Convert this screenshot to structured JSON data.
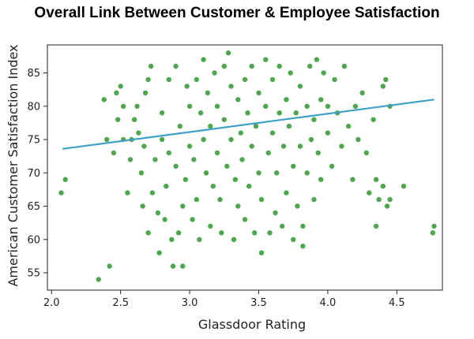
{
  "chart_data": {
    "type": "scatter",
    "title": "Overall Link Between Customer & Employee Satisfaction",
    "xlabel": "Glassdoor Rating",
    "ylabel": "American Customer Satisfaction Index",
    "xlim": [
      1.97,
      4.83
    ],
    "ylim": [
      52.4,
      89.2
    ],
    "xticks": [
      "2.0",
      "2.5",
      "3.0",
      "3.5",
      "4.0",
      "4.5"
    ],
    "yticks": [
      "55",
      "60",
      "65",
      "70",
      "75",
      "80",
      "85"
    ],
    "grid": false,
    "legend": "none",
    "colors": {
      "points": "#4ea64e",
      "trend": "#3fa0c8"
    },
    "trendline": {
      "x": [
        2.08,
        4.77
      ],
      "y": [
        73.6,
        81.0
      ]
    },
    "series": [
      {
        "points": [
          [
            2.07,
            67
          ],
          [
            2.1,
            69
          ],
          [
            2.34,
            54
          ],
          [
            2.42,
            56
          ],
          [
            2.38,
            81
          ],
          [
            2.4,
            75
          ],
          [
            2.45,
            73
          ],
          [
            2.47,
            82
          ],
          [
            2.48,
            78
          ],
          [
            2.5,
            83
          ],
          [
            2.52,
            75
          ],
          [
            2.52,
            80
          ],
          [
            2.55,
            67
          ],
          [
            2.57,
            72
          ],
          [
            2.58,
            75
          ],
          [
            2.6,
            78
          ],
          [
            2.62,
            80
          ],
          [
            2.63,
            76
          ],
          [
            2.65,
            70
          ],
          [
            2.66,
            65
          ],
          [
            2.67,
            74
          ],
          [
            2.68,
            82
          ],
          [
            2.7,
            84
          ],
          [
            2.7,
            61
          ],
          [
            2.72,
            86
          ],
          [
            2.73,
            67
          ],
          [
            2.75,
            72
          ],
          [
            2.77,
            64
          ],
          [
            2.78,
            58
          ],
          [
            2.8,
            75
          ],
          [
            2.8,
            79
          ],
          [
            2.82,
            63
          ],
          [
            2.83,
            68
          ],
          [
            2.85,
            73
          ],
          [
            2.85,
            84
          ],
          [
            2.87,
            60
          ],
          [
            2.88,
            56
          ],
          [
            2.9,
            71
          ],
          [
            2.9,
            86
          ],
          [
            2.92,
            61
          ],
          [
            2.93,
            77
          ],
          [
            2.95,
            56
          ],
          [
            2.95,
            65
          ],
          [
            2.97,
            69
          ],
          [
            2.98,
            83
          ],
          [
            3.0,
            74
          ],
          [
            3.0,
            80
          ],
          [
            3.02,
            63
          ],
          [
            3.03,
            72
          ],
          [
            3.05,
            84
          ],
          [
            3.05,
            66
          ],
          [
            3.07,
            60
          ],
          [
            3.08,
            79
          ],
          [
            3.1,
            75
          ],
          [
            3.1,
            87
          ],
          [
            3.12,
            70
          ],
          [
            3.13,
            82
          ],
          [
            3.15,
            62
          ],
          [
            3.15,
            77
          ],
          [
            3.17,
            68
          ],
          [
            3.18,
            85
          ],
          [
            3.2,
            73
          ],
          [
            3.2,
            80
          ],
          [
            3.22,
            66
          ],
          [
            3.23,
            61
          ],
          [
            3.25,
            78
          ],
          [
            3.25,
            86
          ],
          [
            3.27,
            71
          ],
          [
            3.28,
            88
          ],
          [
            3.3,
            75
          ],
          [
            3.3,
            83
          ],
          [
            3.32,
            60
          ],
          [
            3.33,
            69
          ],
          [
            3.35,
            81
          ],
          [
            3.35,
            65
          ],
          [
            3.37,
            76
          ],
          [
            3.38,
            72
          ],
          [
            3.4,
            84
          ],
          [
            3.4,
            63
          ],
          [
            3.42,
            79
          ],
          [
            3.43,
            68
          ],
          [
            3.45,
            74
          ],
          [
            3.45,
            86
          ],
          [
            3.47,
            61
          ],
          [
            3.48,
            77
          ],
          [
            3.5,
            70
          ],
          [
            3.5,
            82
          ],
          [
            3.52,
            58
          ],
          [
            3.52,
            66
          ],
          [
            3.55,
            80
          ],
          [
            3.55,
            87
          ],
          [
            3.57,
            73
          ],
          [
            3.58,
            61
          ],
          [
            3.6,
            76
          ],
          [
            3.6,
            84
          ],
          [
            3.62,
            64
          ],
          [
            3.63,
            70
          ],
          [
            3.65,
            79
          ],
          [
            3.65,
            86
          ],
          [
            3.67,
            62
          ],
          [
            3.68,
            74
          ],
          [
            3.7,
            81
          ],
          [
            3.7,
            67
          ],
          [
            3.72,
            77
          ],
          [
            3.73,
            85
          ],
          [
            3.75,
            60
          ],
          [
            3.75,
            71
          ],
          [
            3.77,
            79
          ],
          [
            3.78,
            65
          ],
          [
            3.8,
            74
          ],
          [
            3.8,
            83
          ],
          [
            3.82,
            59
          ],
          [
            3.82,
            62
          ],
          [
            3.85,
            70
          ],
          [
            3.85,
            80
          ],
          [
            3.87,
            86
          ],
          [
            3.88,
            75
          ],
          [
            3.9,
            66
          ],
          [
            3.9,
            78
          ],
          [
            3.92,
            87
          ],
          [
            3.93,
            73
          ],
          [
            3.95,
            69
          ],
          [
            3.95,
            81
          ],
          [
            3.97,
            85
          ],
          [
            4.0,
            76
          ],
          [
            4.0,
            80
          ],
          [
            4.03,
            71
          ],
          [
            4.05,
            84
          ],
          [
            4.07,
            79
          ],
          [
            4.1,
            74
          ],
          [
            4.12,
            86
          ],
          [
            4.15,
            77
          ],
          [
            4.18,
            69
          ],
          [
            4.2,
            80
          ],
          [
            4.22,
            75
          ],
          [
            4.25,
            82
          ],
          [
            4.28,
            73
          ],
          [
            4.3,
            67
          ],
          [
            4.33,
            78
          ],
          [
            4.35,
            62
          ],
          [
            4.35,
            69
          ],
          [
            4.37,
            66
          ],
          [
            4.4,
            68
          ],
          [
            4.4,
            83
          ],
          [
            4.42,
            84
          ],
          [
            4.43,
            65
          ],
          [
            4.45,
            66
          ],
          [
            4.45,
            80
          ],
          [
            4.55,
            68
          ],
          [
            4.76,
            61
          ],
          [
            4.77,
            62
          ]
        ]
      }
    ]
  }
}
